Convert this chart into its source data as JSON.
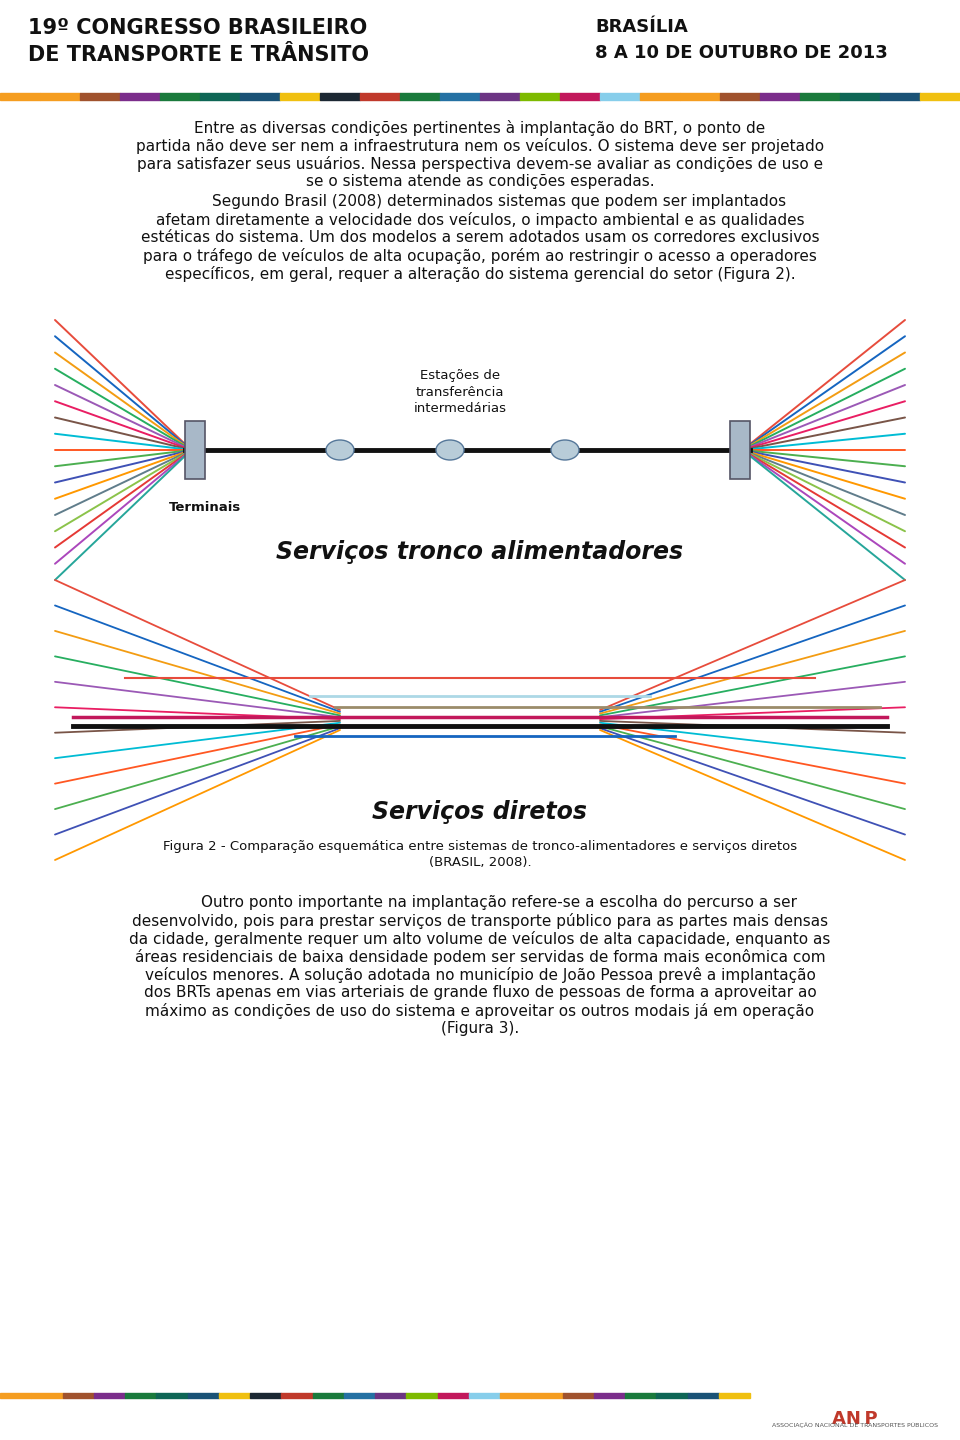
{
  "bg_color": "#ffffff",
  "title_left": "19º CONGRESSO BRASILEIRO\nDE TRANSPORTE E TRÂNSITO",
  "title_right": "BRASÍLIA\n8 A 10 DE OUTUBRO DE 2013",
  "para1": "Entre as diversas condições pertinentes à implantação do BRT, o ponto de partida não deve ser nem a infraestrutura nem os veículos. O sistema deve ser projetado para satisfazer seus usuários. Nessa perspectiva devem-se avaliar as condições de uso e se o sistema atende as condições esperadas.",
  "para2": "Segundo Brasil (2008) determinados sistemas que podem ser implantados afetam diretamente a velocidade dos veículos, o impacto ambiental e as qualidades estéticas do sistema. Um dos modelos a serem adotados usam os corredores exclusivos para o tráfego de veículos de alta ocupação, porém ao restringir o acesso a operadores específicos, em geral, requer a alteração do sistema gerencial do setor (Figura 2).",
  "diagram1_title": "Serviços tronco alimentadores",
  "diagram2_title": "Serviços diretos",
  "label_terminais": "Terminais",
  "label_estacoes": "Estações de\ntransferência\nintermedárias",
  "fig_caption": "Figura 2 - Comparação esquemática entre sistemas de tronco-alimentadores e serviços diretos\n(BRASIL, 2008).",
  "para3": "Outro ponto importante na implantação refere-se a escolha do percurso a ser desenvolvido, pois para prestar serviços de transporte público para as partes mais densas da cidade, geralmente requer um alto volume de veículos de alta capacidade, enquanto as áreas residenciais de baixa densidade podem ser servidas de forma mais econômica com veículos menores. A solução adotada no município de João Pessoa prevê a implantação dos BRTs apenas em vias arteriais de grande fluxo de pessoas de forma a aproveitar ao máximo as condições de uso do sistema e aproveitar os outros modais já em operação (Figura 3).",
  "header_bar_colors": [
    "#f59d20",
    "#f59d20",
    "#a0522d",
    "#7b2d8b",
    "#1a7a3c",
    "#0e6655",
    "#1a5276",
    "#f0c010",
    "#1c2833",
    "#c0392b",
    "#1a7a3c",
    "#2471a3",
    "#6c3483",
    "#7dba00",
    "#c2185b",
    "#87ceeb",
    "#f59d20",
    "#f59d20",
    "#a0522d",
    "#7b2d8b",
    "#1a7a3c",
    "#0e6655",
    "#1a5276",
    "#f0c010"
  ],
  "footer_bar_colors": [
    "#f59d20",
    "#f59d20",
    "#a0522d",
    "#7b2d8b",
    "#1a7a3c",
    "#0e6655",
    "#1a5276",
    "#f0c010",
    "#1c2833",
    "#c0392b",
    "#1a7a3c",
    "#2471a3",
    "#6c3483",
    "#7dba00",
    "#c2185b",
    "#87ceeb",
    "#f59d20",
    "#f59d20",
    "#a0522d",
    "#7b2d8b",
    "#1a7a3c",
    "#0e6655",
    "#1a5276",
    "#f0c010"
  ],
  "d1_fan_colors_left": [
    "#e74c3c",
    "#1565c0",
    "#f39c12",
    "#27ae60",
    "#9b59b6",
    "#e91e63",
    "#795548",
    "#00bcd4",
    "#ff5722",
    "#4caf50",
    "#3f51b5",
    "#ff9800",
    "#607d8b",
    "#8bc34a",
    "#e53935",
    "#ab47bc",
    "#26a69a"
  ],
  "d1_fan_colors_right": [
    "#e74c3c",
    "#1565c0",
    "#f39c12",
    "#27ae60",
    "#9b59b6",
    "#e91e63",
    "#795548",
    "#00bcd4",
    "#ff5722",
    "#4caf50",
    "#3f51b5",
    "#ff9800",
    "#607d8b",
    "#8bc34a",
    "#e53935",
    "#ab47bc",
    "#26a69a"
  ],
  "d2_fan_left": [
    "#e74c3c",
    "#1565c0",
    "#f39c12",
    "#27ae60",
    "#9b59b6",
    "#e91e63",
    "#795548",
    "#00bcd4",
    "#ff5722",
    "#4caf50",
    "#3f51b5",
    "#ff9800"
  ],
  "d2_fan_right": [
    "#e74c3c",
    "#1565c0",
    "#f39c12",
    "#27ae60",
    "#9b59b6",
    "#e91e63",
    "#795548",
    "#00bcd4",
    "#ff5722",
    "#4caf50",
    "#3f51b5",
    "#ff9800"
  ],
  "d2_trunk_colors": [
    "#e74c3c",
    "#c0392b",
    "#a0522d",
    "#add8e6",
    "#add8e6",
    "#9b8c6a",
    "#c2185b",
    "#1a1a1a",
    "#1565c0"
  ],
  "fontsize_body": 11.0,
  "fontsize_title_diag": 17
}
